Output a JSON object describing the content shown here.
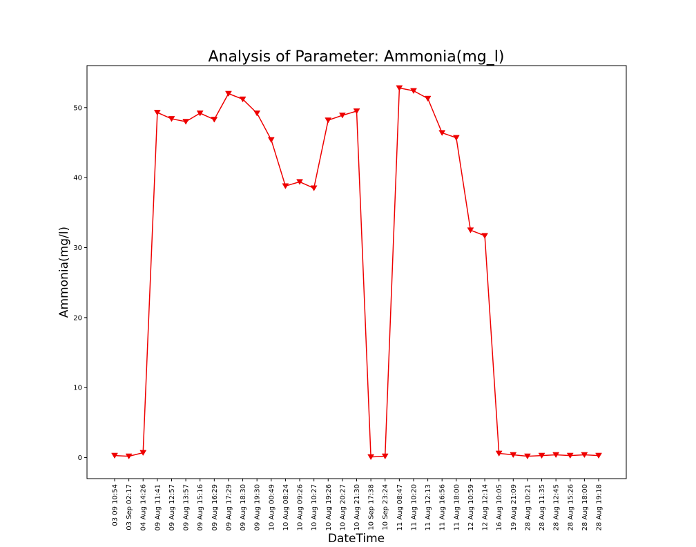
{
  "chart_data": {
    "type": "line",
    "title": "Analysis of Parameter: Ammonia(mg_l)",
    "xlabel": "DateTime",
    "ylabel": "Ammonia(mg/l)",
    "ylim": [
      -3,
      56
    ],
    "yticks": [
      0,
      10,
      20,
      30,
      40,
      50
    ],
    "grid": false,
    "legend": "none",
    "categories": [
      "03 09 10:54",
      "03 Sep 02:17",
      "04 Aug 14:26",
      "09 Aug 11:41",
      "09 Aug 12:57",
      "09 Aug 13:57",
      "09 Aug 15:16",
      "09 Aug 16:29",
      "09 Aug 17:29",
      "09 Aug 18:30",
      "09 Aug 19:30",
      "10 Aug 00:49",
      "10 Aug 08:24",
      "10 Aug 09:26",
      "10 Aug 10:27",
      "10 Aug 19:26",
      "10 Aug 20:27",
      "10 Aug 21:30",
      "10 Sep 17:38",
      "10 Sep 23:24",
      "11 Aug 08:47",
      "11 Aug 10:20",
      "11 Aug 12:13",
      "11 Aug 16:56",
      "11 Aug 18:00",
      "12 Aug 10:59",
      "12 Aug 12:14",
      "16 Aug 10:05",
      "19 Aug 21:09",
      "28 Aug 10:21",
      "28 Aug 11:35",
      "28 Aug 12:45",
      "28 Aug 15:26",
      "28 Aug 18:00",
      "28 Aug 19:18"
    ],
    "series": [
      {
        "color": "#ee0000",
        "marker": "triangle-down",
        "values": [
          0.3,
          0.2,
          0.7,
          49.3,
          48.4,
          48.0,
          49.2,
          48.3,
          52.0,
          51.2,
          49.2,
          45.4,
          38.8,
          39.4,
          38.5,
          48.2,
          48.9,
          49.5,
          0.1,
          0.2,
          52.8,
          52.4,
          51.3,
          46.4,
          45.7,
          32.5,
          31.7,
          0.6,
          0.4,
          0.2,
          0.3,
          0.4,
          0.3,
          0.4,
          0.3
        ]
      }
    ]
  }
}
